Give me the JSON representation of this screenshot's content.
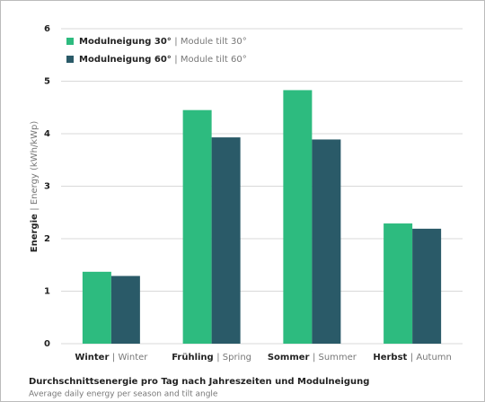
{
  "chart_data": {
    "type": "bar",
    "title": "Durchschnittsenergie pro Tag nach Jahreszeiten und Modulneigung",
    "subtitle": "Average daily energy per season and tilt angle",
    "y_label": "Energie | Energy (kWh/kWp)",
    "categories": [
      "Winter | Winter",
      "Frühling | Spring",
      "Sommer | Summer",
      "Herbst | Autumn"
    ],
    "series": [
      {
        "name": "Modulneigung 30° | Module tilt 30°",
        "color": "#2dbb7f",
        "values": [
          1.37,
          4.45,
          4.83,
          2.29
        ]
      },
      {
        "name": "Modulneigung 60° | Module tilt 60°",
        "color": "#2a5a68",
        "values": [
          1.29,
          3.93,
          3.89,
          2.19
        ]
      }
    ],
    "ylim": [
      0,
      6
    ],
    "yticks": [
      0,
      1,
      2,
      3,
      4,
      5,
      6
    ],
    "grid": true,
    "legend": "top-left"
  }
}
